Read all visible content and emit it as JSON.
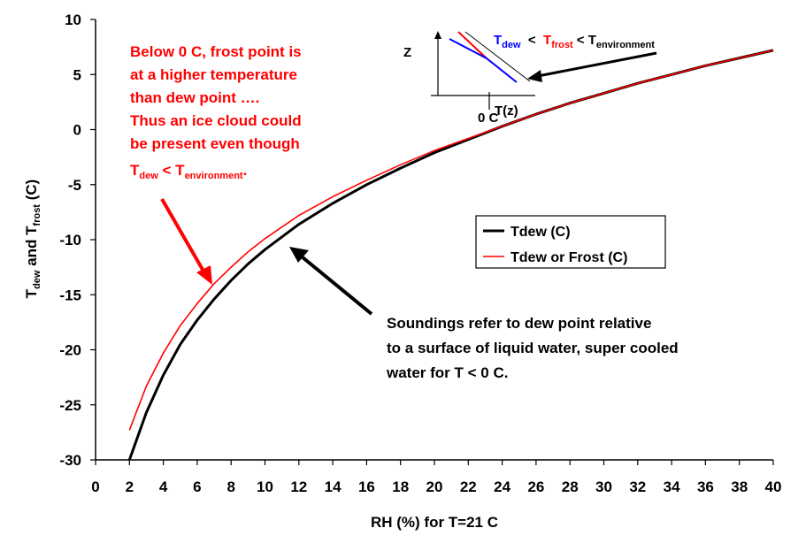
{
  "chart_data": {
    "type": "line",
    "xlabel": "RH (%) for T=21 C",
    "ylabel": {
      "pre": "T",
      "sub1": "dew",
      "mid": " and T",
      "sub2": "frost",
      "post": " (C)"
    },
    "xlim": [
      0,
      40
    ],
    "ylim": [
      -30,
      10
    ],
    "x_ticks": [
      "0",
      "2",
      "4",
      "6",
      "8",
      "10",
      "12",
      "14",
      "16",
      "18",
      "20",
      "22",
      "24",
      "26",
      "28",
      "30",
      "32",
      "34",
      "36",
      "38",
      "40"
    ],
    "y_ticks": [
      "10",
      "5",
      "0",
      "-5",
      "-10",
      "-15",
      "-20",
      "-25",
      "-30"
    ],
    "grid": false,
    "legend_position": "right",
    "series": [
      {
        "name": "Tdew (C)",
        "color": "#000000",
        "x": [
          2,
          3,
          4,
          5,
          6,
          7,
          8,
          9,
          10,
          12,
          14,
          16,
          18,
          20,
          22,
          24,
          26,
          28,
          30,
          32,
          34,
          36,
          38,
          40
        ],
        "values": [
          -30.0,
          -25.7,
          -22.3,
          -19.5,
          -17.3,
          -15.4,
          -13.7,
          -12.2,
          -10.9,
          -8.6,
          -6.7,
          -5.0,
          -3.5,
          -2.1,
          -0.9,
          0.3,
          1.4,
          2.4,
          3.3,
          4.2,
          5.0,
          5.8,
          6.5,
          7.2
        ]
      },
      {
        "name": "Tdew or Frost (C)",
        "color": "#ff0000",
        "x": [
          2,
          3,
          4,
          5,
          6,
          7,
          8,
          9,
          10,
          12,
          14,
          16,
          18,
          20,
          22,
          24,
          26,
          28,
          30,
          32,
          34,
          36,
          38,
          40
        ],
        "values": [
          -27.3,
          -23.3,
          -20.3,
          -17.8,
          -15.8,
          -14.0,
          -12.5,
          -11.1,
          -9.9,
          -7.8,
          -6.1,
          -4.6,
          -3.2,
          -1.9,
          -0.8,
          0.3,
          1.4,
          2.4,
          3.3,
          4.2,
          5.0,
          5.8,
          6.5,
          7.2
        ]
      }
    ],
    "annotations": {
      "red_note_lines": [
        "Below 0 C, frost point is",
        "at a higher temperature",
        "than dew point ….",
        "Thus an ice cloud could",
        "be present even though"
      ],
      "red_note_last": {
        "t1": "T",
        "s1": "dew",
        "mid": " < T",
        "s2": "environment",
        "end": "."
      },
      "black_note_lines": [
        "Soundings refer to dew point relative",
        "to a surface of liquid water, super cooled",
        "water for T < 0 C."
      ],
      "inset": {
        "z_label": "Z",
        "x_label": "T(z)",
        "zero_label": "0 C",
        "relation": {
          "t_dew": "T",
          "s_dew": "dew",
          "lt1": "  <  ",
          "t_frost": "T",
          "s_frost": "frost",
          "lt2": " < T",
          "s_env": "environment"
        }
      }
    }
  }
}
